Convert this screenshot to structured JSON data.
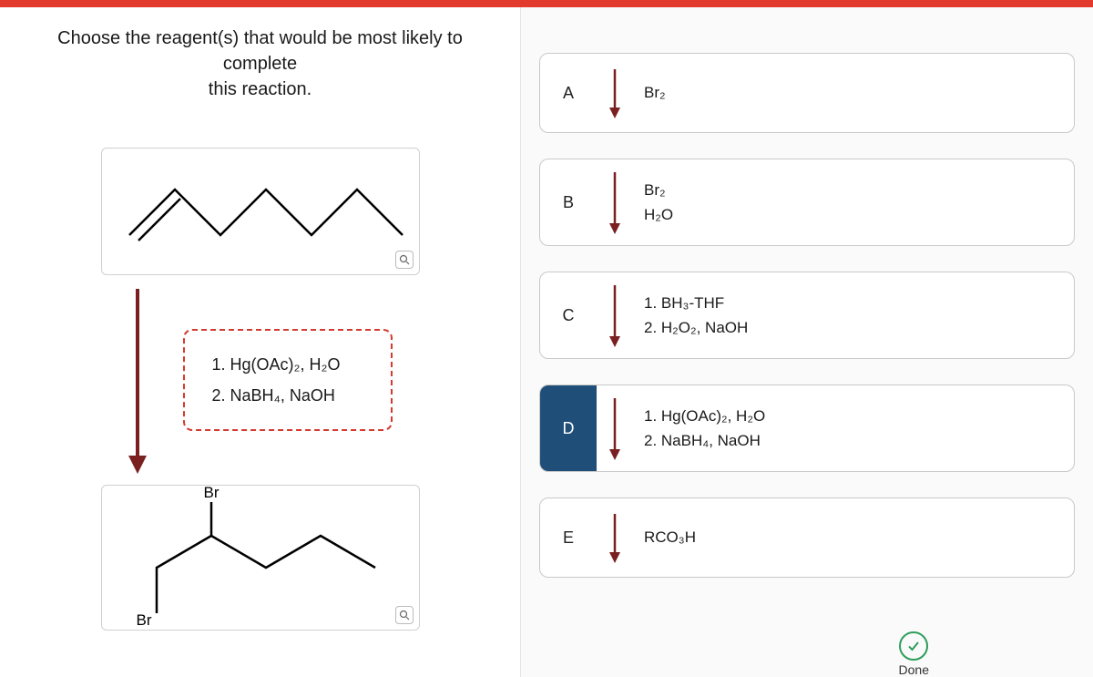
{
  "accent_bar_color": "#e23b2e",
  "question_line1": "Choose the reagent(s) that would be most likely to complete",
  "question_line2": "this reaction.",
  "reagent_slot": {
    "line1": "1. Hg(OAc)₂, H₂O",
    "line2": "2. NaBH₄, NaOH"
  },
  "product_labels": {
    "top": "Br",
    "bottom": "Br"
  },
  "options": [
    {
      "letter": "A",
      "selected": false,
      "lines": [
        "Br₂"
      ]
    },
    {
      "letter": "B",
      "selected": false,
      "lines": [
        "Br₂",
        "H₂O"
      ]
    },
    {
      "letter": "C",
      "selected": false,
      "lines": [
        "1. BH₃-THF",
        "2. H₂O₂, NaOH"
      ]
    },
    {
      "letter": "D",
      "selected": true,
      "lines": [
        "1. Hg(OAc)₂, H₂O",
        "2. NaBH₄, NaOH"
      ]
    },
    {
      "letter": "E",
      "selected": false,
      "lines": [
        "RCO₃H"
      ]
    }
  ],
  "done_label": "Done",
  "arrow_color": "#7a2020",
  "opt_arrow_color": "#7a2020"
}
